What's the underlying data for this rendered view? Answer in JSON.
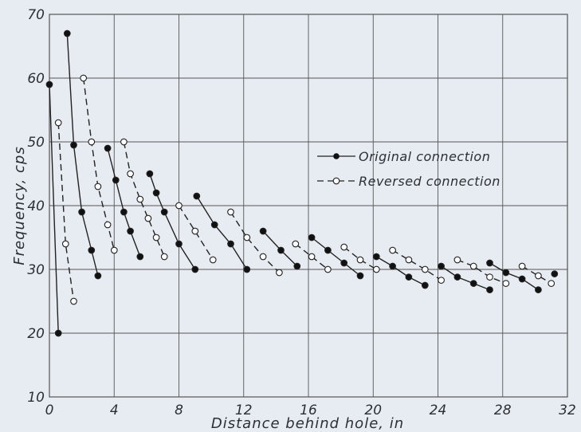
{
  "chart_data": {
    "type": "line",
    "title": "",
    "xlabel": "Distance behind hole, in",
    "ylabel": "Frequency, cps",
    "xlim": [
      0,
      32
    ],
    "ylim": [
      10,
      70
    ],
    "x_ticks": [
      0,
      4,
      8,
      12,
      16,
      20,
      24,
      28,
      32
    ],
    "y_ticks": [
      10,
      20,
      30,
      40,
      50,
      60,
      70
    ],
    "grid": true,
    "legend_placement": "center-right",
    "colors": {
      "background": "#e6ecf1",
      "line": "#222222",
      "grid": "#555555"
    },
    "series": [
      {
        "name": "Original connection",
        "marker": "filled-circle",
        "line_style": "solid",
        "segments": [
          [
            [
              0.0,
              59
            ],
            [
              0.55,
              20
            ]
          ],
          [
            [
              1.1,
              67
            ],
            [
              1.5,
              49.5
            ],
            [
              2.0,
              39
            ],
            [
              2.6,
              33
            ],
            [
              3.0,
              29
            ]
          ],
          [
            [
              3.6,
              49
            ],
            [
              4.1,
              44
            ],
            [
              4.6,
              39
            ],
            [
              5.0,
              36
            ],
            [
              5.6,
              32
            ]
          ],
          [
            [
              6.2,
              45
            ],
            [
              6.6,
              42
            ],
            [
              7.1,
              39
            ],
            [
              8.0,
              34
            ],
            [
              9.0,
              30
            ]
          ],
          [
            [
              9.1,
              41.5
            ],
            [
              10.2,
              37
            ],
            [
              11.2,
              34
            ],
            [
              12.2,
              30
            ]
          ],
          [
            [
              13.2,
              36
            ],
            [
              14.3,
              33
            ],
            [
              15.3,
              30.5
            ]
          ],
          [
            [
              16.2,
              35
            ],
            [
              17.2,
              33
            ],
            [
              18.2,
              31
            ],
            [
              19.2,
              29
            ]
          ],
          [
            [
              20.2,
              32
            ],
            [
              21.2,
              30.5
            ],
            [
              22.2,
              28.8
            ],
            [
              23.2,
              27.5
            ]
          ],
          [
            [
              24.2,
              30.5
            ],
            [
              25.2,
              28.8
            ],
            [
              26.2,
              27.8
            ],
            [
              27.2,
              26.8
            ]
          ],
          [
            [
              27.2,
              31
            ],
            [
              28.2,
              29.5
            ],
            [
              29.2,
              28.5
            ],
            [
              30.2,
              26.8
            ]
          ],
          [
            [
              31.2,
              29.3
            ]
          ]
        ]
      },
      {
        "name": "Reversed connection",
        "marker": "open-circle",
        "line_style": "dashed",
        "segments": [
          [
            [
              0.55,
              53
            ],
            [
              1.0,
              34
            ],
            [
              1.5,
              25
            ]
          ],
          [
            [
              2.1,
              60
            ],
            [
              2.6,
              50
            ],
            [
              3.0,
              43
            ],
            [
              3.6,
              37
            ],
            [
              4.0,
              33
            ]
          ],
          [
            [
              4.6,
              50
            ],
            [
              5.0,
              45
            ],
            [
              5.6,
              41
            ],
            [
              6.1,
              38
            ],
            [
              6.6,
              35
            ],
            [
              7.1,
              32
            ]
          ],
          [
            [
              8.0,
              40
            ],
            [
              9.0,
              36
            ],
            [
              10.1,
              31.5
            ]
          ],
          [
            [
              11.2,
              39
            ],
            [
              12.2,
              35
            ],
            [
              13.2,
              32
            ],
            [
              14.2,
              29.5
            ]
          ],
          [
            [
              15.2,
              34
            ],
            [
              16.2,
              32
            ],
            [
              17.2,
              30
            ]
          ],
          [
            [
              18.2,
              33.5
            ],
            [
              19.2,
              31.5
            ],
            [
              20.2,
              30
            ]
          ],
          [
            [
              21.2,
              33
            ],
            [
              22.2,
              31.5
            ],
            [
              23.2,
              30
            ],
            [
              24.2,
              28.3
            ]
          ],
          [
            [
              25.2,
              31.5
            ],
            [
              26.2,
              30.5
            ],
            [
              27.2,
              28.8
            ],
            [
              28.2,
              27.8
            ]
          ],
          [
            [
              29.2,
              30.5
            ],
            [
              30.2,
              29
            ],
            [
              31.0,
              27.8
            ]
          ]
        ]
      }
    ]
  }
}
